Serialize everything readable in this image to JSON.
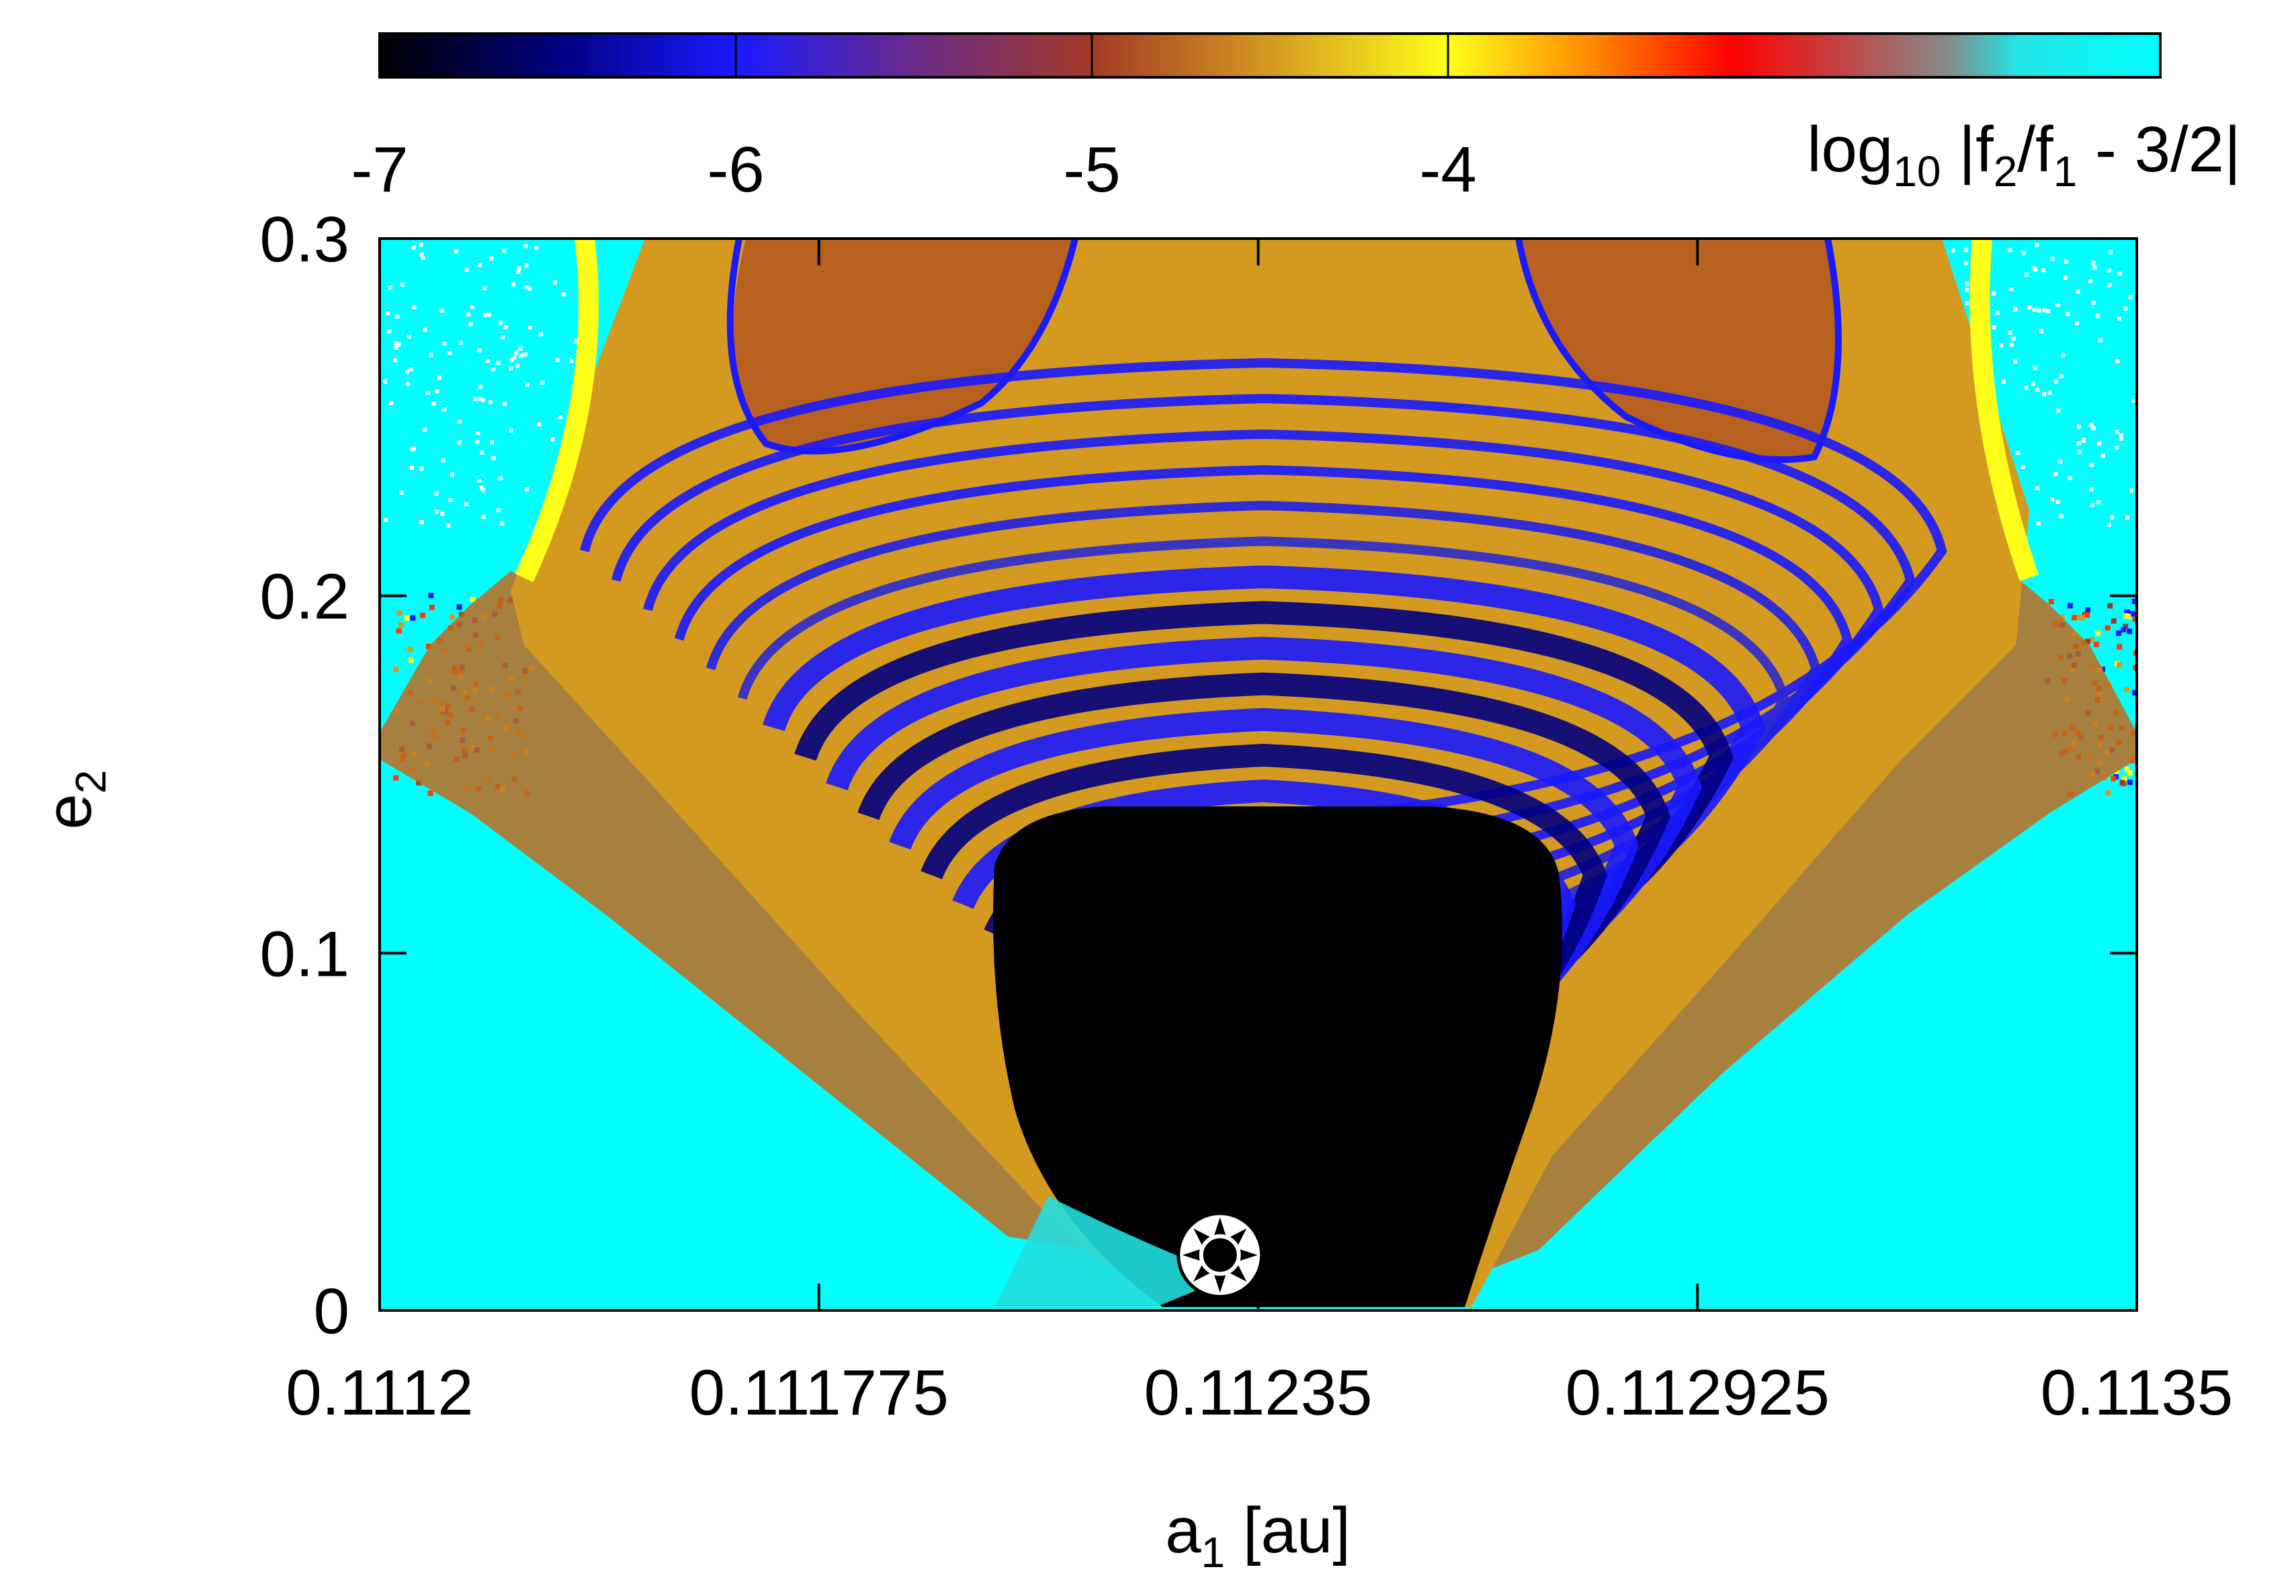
{
  "chart_data": {
    "type": "heatmap",
    "title": "",
    "xlabel": "a",
    "xlabel_sub": "1",
    "xlabel_unit": " [au]",
    "ylabel": "e",
    "ylabel_sub": "2",
    "xlim": [
      0.1112,
      0.1135
    ],
    "ylim": [
      0,
      0.3
    ],
    "x_ticks": [
      {
        "value": 0.1112,
        "label": "0.1112"
      },
      {
        "value": 0.111775,
        "label": "0.111775"
      },
      {
        "value": 0.11235,
        "label": "0.11235"
      },
      {
        "value": 0.112925,
        "label": "0.112925"
      },
      {
        "value": 0.1135,
        "label": "0.1135"
      }
    ],
    "y_ticks": [
      {
        "value": 0,
        "label": "0"
      },
      {
        "value": 0.1,
        "label": "0.1"
      },
      {
        "value": 0.2,
        "label": "0.2"
      },
      {
        "value": 0.3,
        "label": "0.3"
      }
    ],
    "colorbar": {
      "position": "top",
      "range": [
        -7,
        -2
      ],
      "ticks": [
        {
          "value": -7,
          "label": "-7"
        },
        {
          "value": -6,
          "label": "-6"
        },
        {
          "value": -5,
          "label": "-5"
        },
        {
          "value": -4,
          "label": "-4"
        }
      ],
      "label_parts": {
        "pre": "log",
        "sub": "10",
        "mid": " |f",
        "sub2": "2",
        "mid2": "/f",
        "sub3": "1",
        "post": " - 3/2|"
      },
      "palette": [
        {
          "value": -7.0,
          "color": "#000000"
        },
        {
          "value": -6.5,
          "color": "#000080"
        },
        {
          "value": -6.0,
          "color": "#1a1aff"
        },
        {
          "value": -5.5,
          "color": "#6a2a8a"
        },
        {
          "value": -5.0,
          "color": "#a23a26"
        },
        {
          "value": -4.5,
          "color": "#d49a20"
        },
        {
          "value": -4.0,
          "color": "#ffff1a"
        },
        {
          "value": -3.6,
          "color": "#ff8a00"
        },
        {
          "value": -3.2,
          "color": "#ff0000"
        },
        {
          "value": -2.6,
          "color": "#888888"
        },
        {
          "value": -2.4,
          "color": "#22e4e4"
        },
        {
          "value": -2.0,
          "color": "#00ffff"
        }
      ]
    },
    "field_description_levels": {
      "outside_resonance": -2.0,
      "separatrix_band": -3.5,
      "outer_tongue": -4.5,
      "inner_core": -7.0
    },
    "marker": {
      "x": 0.1123,
      "y": 0.0155,
      "symbol": "star-circle"
    }
  }
}
